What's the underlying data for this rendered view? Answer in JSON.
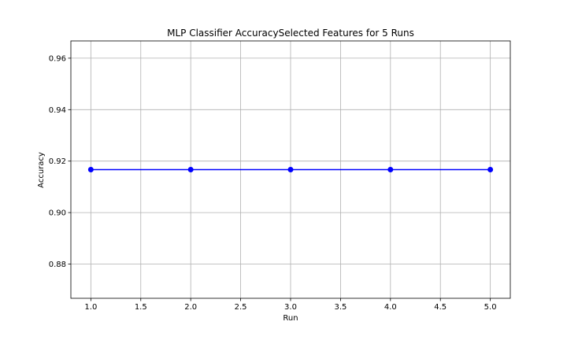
{
  "chart_data": {
    "type": "line",
    "title": "MLP Classifier AccuracySelected Features for 5 Runs",
    "xlabel": "Run",
    "ylabel": "Accuracy",
    "x": [
      1,
      2,
      3,
      4,
      5
    ],
    "series": [
      {
        "values": [
          0.9167,
          0.9167,
          0.9167,
          0.9167,
          0.9167
        ],
        "color": "#0000ff",
        "marker": "circle"
      }
    ],
    "xlim": [
      0.8,
      5.2
    ],
    "ylim": [
      0.8667,
      0.9667
    ],
    "xticks": [
      1.0,
      1.5,
      2.0,
      2.5,
      3.0,
      3.5,
      4.0,
      4.5,
      5.0
    ],
    "xtick_labels": [
      "1.0",
      "1.5",
      "2.0",
      "2.5",
      "3.0",
      "3.5",
      "4.0",
      "4.5",
      "5.0"
    ],
    "yticks": [
      0.88,
      0.9,
      0.92,
      0.94,
      0.96
    ],
    "ytick_labels": [
      "0.88",
      "0.90",
      "0.92",
      "0.94",
      "0.96"
    ],
    "grid": true,
    "legend": false
  }
}
